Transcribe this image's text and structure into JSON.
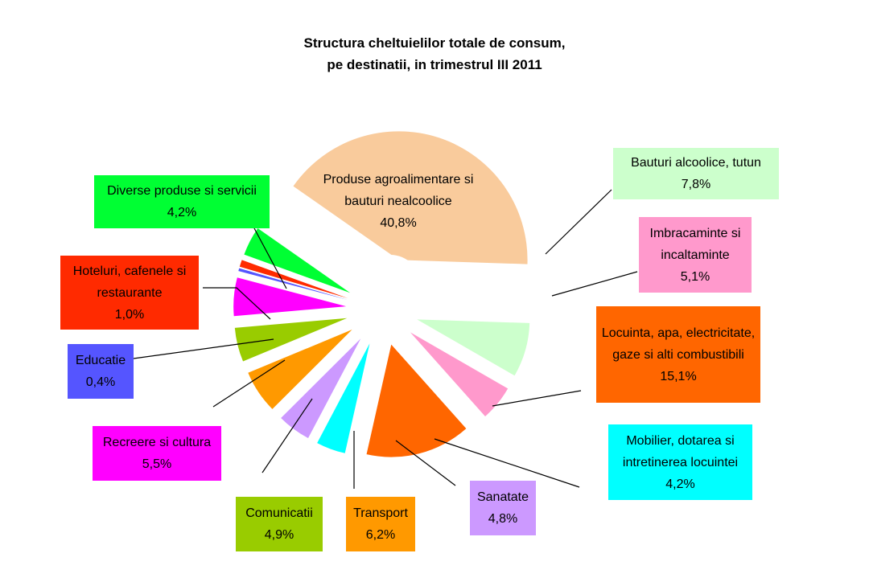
{
  "chart_data": {
    "type": "pie",
    "title": "Structura cheltuielilor totale de consum,",
    "subtitle": "pe destinatii, in trimestrul III 2011",
    "slices": [
      {
        "name": "Produse agroalimentare si bauturi nealcoolice",
        "value": 40.8,
        "label": "40,8%",
        "color": "#F9CB9C"
      },
      {
        "name": "Bauturi alcoolice, tutun",
        "value": 7.8,
        "label": "7,8%",
        "color": "#CCFFCC"
      },
      {
        "name": "Imbracaminte si incaltaminte",
        "value": 5.1,
        "label": "5,1%",
        "color": "#FF99CC"
      },
      {
        "name": "Locuinta, apa, electricitate, gaze si alti combustibili",
        "value": 15.1,
        "label": "15,1%",
        "color": "#FF6600"
      },
      {
        "name": "Mobilier, dotarea si intretinerea locuintei",
        "value": 4.2,
        "label": "4,2%",
        "color": "#00FFFF"
      },
      {
        "name": "Sanatate",
        "value": 4.8,
        "label": "4,8%",
        "color": "#CC99FF"
      },
      {
        "name": "Transport",
        "value": 6.2,
        "label": "6,2%",
        "color": "#FF9900"
      },
      {
        "name": "Comunicatii",
        "value": 4.9,
        "label": "4,9%",
        "color": "#99CC00"
      },
      {
        "name": "Recreere si cultura",
        "value": 5.5,
        "label": "5,5%",
        "color": "#FF00FF"
      },
      {
        "name": "Educatie",
        "value": 0.4,
        "label": "0,4%",
        "color": "#5555FF"
      },
      {
        "name": "Hoteluri, cafenele si restaurante",
        "value": 1.0,
        "label": "1,0%",
        "color": "#FF2A00"
      },
      {
        "name": "Diverse produse si servicii",
        "value": 4.2,
        "label": "4,2%",
        "color": "#00FF33"
      }
    ],
    "legend": "none"
  }
}
